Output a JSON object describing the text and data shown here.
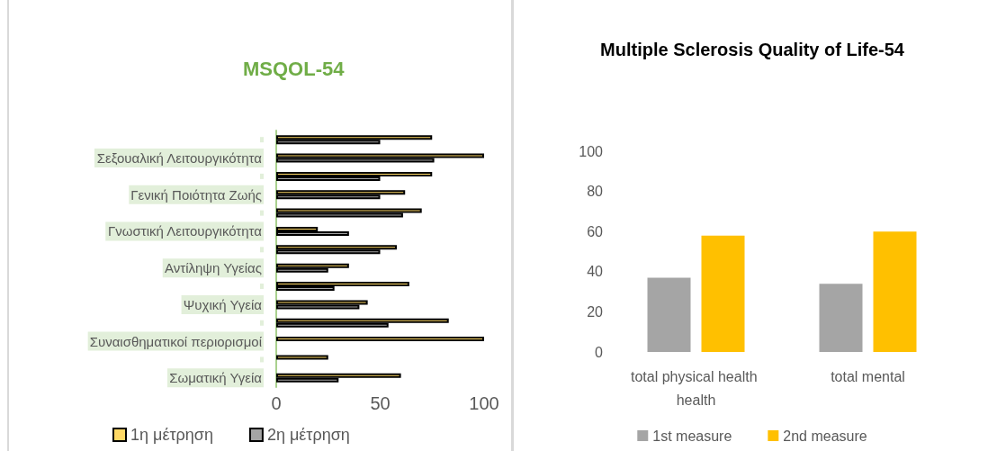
{
  "chart_data": [
    {
      "type": "bar",
      "title": "MSQOL-54",
      "orientation": "horizontal",
      "categories": [
        null,
        "Σεξουαλική Λειτουργικότητα",
        null,
        "Γενική Ποιότητα Ζωής",
        null,
        "Γνωστική Λειτουργικότητα",
        null,
        "Αντίληψη Υγείας",
        null,
        "Ψυχική Υγεία",
        null,
        "Συναισθηματικοί περιορισμοί",
        null,
        "Σωματική Υγεία"
      ],
      "series": [
        {
          "name": "1η μέτρηση",
          "color": "#ffd966",
          "values": [
            75,
            100,
            75,
            62,
            70,
            20,
            58,
            35,
            64,
            44,
            83,
            100,
            25,
            60
          ]
        },
        {
          "name": "2η μέτρηση",
          "color": "#a5a5a5",
          "values": [
            50,
            76,
            50,
            50,
            61,
            35,
            50,
            25,
            28,
            40,
            54,
            null,
            null,
            30
          ]
        }
      ],
      "xlim": [
        0,
        100
      ],
      "xticks": [
        0,
        50,
        100
      ],
      "grid": false,
      "legend": "bottom left"
    },
    {
      "type": "bar",
      "title": "Multiple Sclerosis Quality of Life-54",
      "categories": [
        "total physical health health",
        "total mental"
      ],
      "series": [
        {
          "name": "1st measure",
          "color": "#a5a5a5",
          "values": [
            37,
            34
          ]
        },
        {
          "name": "2nd measure",
          "color": "#ffc000",
          "values": [
            58,
            60
          ]
        }
      ],
      "ylim": [
        0,
        100
      ],
      "yticks": [
        0,
        20,
        40,
        60,
        80,
        100
      ],
      "grid": false,
      "legend": "bottom"
    }
  ]
}
